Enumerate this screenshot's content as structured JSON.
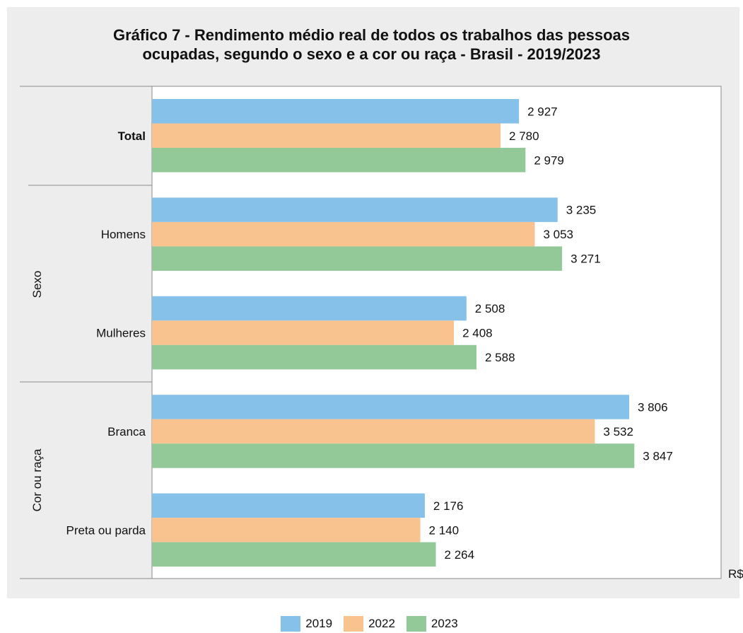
{
  "chart_data": {
    "type": "bar",
    "orientation": "horizontal",
    "title_lines": [
      "Gráfico 7 - Rendimento médio real de todos os trabalhos das pessoas",
      "ocupadas, segundo o sexo e a cor ou raça - Brasil - 2019/2023"
    ],
    "xlabel": "R$",
    "xlim": [
      0,
      4600
    ],
    "grid": false,
    "legend_position": "bottom",
    "categories": [
      "Total",
      "Homens",
      "Mulheres",
      "Branca",
      "Preta ou parda"
    ],
    "group_labels": [
      {
        "label": "Sexo",
        "categories": [
          "Homens",
          "Mulheres"
        ]
      },
      {
        "label": "Cor ou raça",
        "categories": [
          "Branca",
          "Preta ou parda"
        ]
      }
    ],
    "series": [
      {
        "name": "2019",
        "color": "#86c1e9",
        "values": [
          2927,
          3235,
          2508,
          3806,
          2176
        ],
        "labels": [
          "2 927",
          "3 235",
          "2 508",
          "3 806",
          "2 176"
        ]
      },
      {
        "name": "2022",
        "color": "#f9c38f",
        "values": [
          2780,
          3053,
          2408,
          3532,
          2140
        ],
        "labels": [
          "2 780",
          "3 053",
          "2 408",
          "3 532",
          "2 140"
        ]
      },
      {
        "name": "2023",
        "color": "#93c999",
        "values": [
          2979,
          3271,
          2588,
          3847,
          2264
        ],
        "labels": [
          "2 979",
          "3 271",
          "2 588",
          "3 847",
          "2 264"
        ]
      }
    ]
  }
}
